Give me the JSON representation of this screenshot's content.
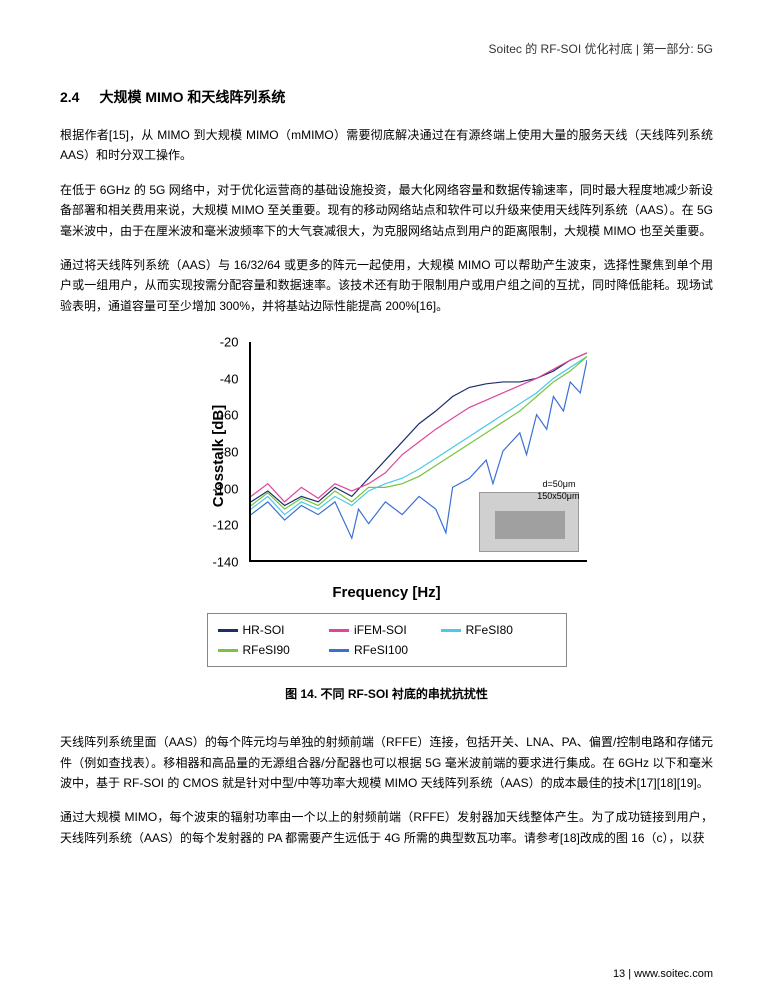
{
  "header": "Soitec 的 RF-SOI 优化衬底 | 第一部分: 5G",
  "section": {
    "number": "2.4",
    "title": "大规模 MIMO 和天线阵列系统"
  },
  "p1": "根据作者[15]，从 MIMO 到大规模 MIMO（mMIMO）需要彻底解决通过在有源终端上使用大量的服务天线（天线阵列系统 AAS）和时分双工操作。",
  "p2": "在低于 6GHz 的 5G 网络中，对于优化运营商的基础设施投资，最大化网络容量和数据传输速率，同时最大程度地减少新设备部署和相关费用来说，大规模 MIMO 至关重要。现有的移动网络站点和软件可以升级来使用天线阵列系统（AAS）。在 5G 毫米波中，由于在厘米波和毫米波频率下的大气衰减很大，为克服网络站点到用户的距离限制，大规模 MIMO 也至关重要。",
  "p3": "通过将天线阵列系统（AAS）与 16/32/64 或更多的阵元一起使用，大规模 MIMO 可以帮助产生波束，选择性聚焦到单个用户或一组用户，从而实现按需分配容量和数据速率。该技术还有助于限制用户或用户组之间的互扰，同时降低能耗。现场试验表明，通道容量可至少增加 300%，并将基站边际性能提高 200%[16]。",
  "chart": {
    "ylabel": "Crosstalk [dB]",
    "xlabel": "Frequency [Hz]",
    "ylim": [
      -140,
      -20
    ],
    "yticks": [
      -20,
      -40,
      -60,
      -80,
      -100,
      -120,
      -140
    ],
    "inset": {
      "d_label": "d=50μm",
      "size_label": "150x50μm"
    },
    "series": [
      {
        "name": "HR-SOI",
        "color": "#1a2e6b",
        "points": [
          [
            0,
            -108
          ],
          [
            0.05,
            -102
          ],
          [
            0.1,
            -110
          ],
          [
            0.15,
            -105
          ],
          [
            0.2,
            -108
          ],
          [
            0.25,
            -100
          ],
          [
            0.3,
            -105
          ],
          [
            0.35,
            -95
          ],
          [
            0.4,
            -85
          ],
          [
            0.45,
            -75
          ],
          [
            0.5,
            -65
          ],
          [
            0.55,
            -58
          ],
          [
            0.6,
            -50
          ],
          [
            0.65,
            -45
          ],
          [
            0.7,
            -43
          ],
          [
            0.75,
            -42
          ],
          [
            0.8,
            -42
          ],
          [
            0.85,
            -40
          ],
          [
            0.9,
            -36
          ],
          [
            0.95,
            -30
          ],
          [
            1,
            -26
          ]
        ]
      },
      {
        "name": "iFEM-SOI",
        "color": "#e0449c",
        "points": [
          [
            0,
            -105
          ],
          [
            0.05,
            -98
          ],
          [
            0.1,
            -108
          ],
          [
            0.15,
            -100
          ],
          [
            0.2,
            -106
          ],
          [
            0.25,
            -98
          ],
          [
            0.3,
            -102
          ],
          [
            0.35,
            -98
          ],
          [
            0.4,
            -92
          ],
          [
            0.45,
            -82
          ],
          [
            0.5,
            -75
          ],
          [
            0.55,
            -68
          ],
          [
            0.6,
            -62
          ],
          [
            0.65,
            -56
          ],
          [
            0.7,
            -52
          ],
          [
            0.75,
            -48
          ],
          [
            0.8,
            -44
          ],
          [
            0.85,
            -40
          ],
          [
            0.9,
            -35
          ],
          [
            0.95,
            -30
          ],
          [
            1,
            -26
          ]
        ]
      },
      {
        "name": "RFeSI80",
        "color": "#4bc9e8",
        "points": [
          [
            0,
            -112
          ],
          [
            0.05,
            -105
          ],
          [
            0.1,
            -115
          ],
          [
            0.15,
            -108
          ],
          [
            0.2,
            -112
          ],
          [
            0.25,
            -105
          ],
          [
            0.3,
            -110
          ],
          [
            0.35,
            -102
          ],
          [
            0.4,
            -98
          ],
          [
            0.45,
            -95
          ],
          [
            0.5,
            -90
          ],
          [
            0.55,
            -84
          ],
          [
            0.6,
            -78
          ],
          [
            0.65,
            -72
          ],
          [
            0.7,
            -66
          ],
          [
            0.75,
            -60
          ],
          [
            0.8,
            -54
          ],
          [
            0.85,
            -48
          ],
          [
            0.9,
            -40
          ],
          [
            0.95,
            -34
          ],
          [
            1,
            -28
          ]
        ]
      },
      {
        "name": "RFeSI90",
        "color": "#78c43c",
        "points": [
          [
            0,
            -110
          ],
          [
            0.05,
            -103
          ],
          [
            0.1,
            -112
          ],
          [
            0.15,
            -106
          ],
          [
            0.2,
            -110
          ],
          [
            0.25,
            -102
          ],
          [
            0.3,
            -108
          ],
          [
            0.35,
            -100
          ],
          [
            0.4,
            -100
          ],
          [
            0.45,
            -98
          ],
          [
            0.5,
            -94
          ],
          [
            0.55,
            -88
          ],
          [
            0.6,
            -82
          ],
          [
            0.65,
            -76
          ],
          [
            0.7,
            -70
          ],
          [
            0.75,
            -64
          ],
          [
            0.8,
            -58
          ],
          [
            0.85,
            -50
          ],
          [
            0.9,
            -42
          ],
          [
            0.95,
            -36
          ],
          [
            1,
            -28
          ]
        ]
      },
      {
        "name": "RFeSI100",
        "color": "#3a6fd8",
        "points": [
          [
            0,
            -115
          ],
          [
            0.05,
            -108
          ],
          [
            0.1,
            -118
          ],
          [
            0.15,
            -110
          ],
          [
            0.2,
            -115
          ],
          [
            0.25,
            -108
          ],
          [
            0.3,
            -128
          ],
          [
            0.32,
            -112
          ],
          [
            0.35,
            -120
          ],
          [
            0.4,
            -108
          ],
          [
            0.45,
            -115
          ],
          [
            0.5,
            -105
          ],
          [
            0.55,
            -112
          ],
          [
            0.58,
            -125
          ],
          [
            0.6,
            -100
          ],
          [
            0.65,
            -95
          ],
          [
            0.7,
            -85
          ],
          [
            0.72,
            -98
          ],
          [
            0.75,
            -80
          ],
          [
            0.8,
            -70
          ],
          [
            0.82,
            -82
          ],
          [
            0.85,
            -60
          ],
          [
            0.88,
            -68
          ],
          [
            0.9,
            -50
          ],
          [
            0.93,
            -58
          ],
          [
            0.95,
            -42
          ],
          [
            0.98,
            -48
          ],
          [
            1,
            -30
          ]
        ]
      }
    ]
  },
  "legend": {
    "items": [
      {
        "label": "HR-SOI",
        "color": "#1a2e6b"
      },
      {
        "label": "iFEM-SOI",
        "color": "#e0449c"
      },
      {
        "label": "RFeSI80",
        "color": "#4bc9e8"
      },
      {
        "label": "RFeSI90",
        "color": "#78c43c"
      },
      {
        "label": "RFeSI100",
        "color": "#3a6fd8"
      }
    ]
  },
  "caption": "图 14. 不同 RF-SOI 衬底的串扰抗扰性",
  "p4": "天线阵列系统里面（AAS）的每个阵元均与单独的射频前端（RFFE）连接，包括开关、LNA、PA、偏置/控制电路和存储元件（例如查找表）。移相器和高品量的无源组合器/分配器也可以根据 5G 毫米波前端的要求进行集成。在 6GHz 以下和毫米波中，基于 RF-SOI 的 CMOS 就是针对中型/中等功率大规模 MIMO 天线阵列系统（AAS）的成本最佳的技术[17][18][19]。",
  "p5": "通过大规模 MIMO，每个波束的辐射功率由一个以上的射频前端（RFFE）发射器加天线整体产生。为了成功链接到用户，天线阵列系统（AAS）的每个发射器的 PA 都需要产生远低于 4G 所需的典型数瓦功率。请参考[18]改成的图 16（c），以获",
  "footer": "13 | www.soitec.com"
}
